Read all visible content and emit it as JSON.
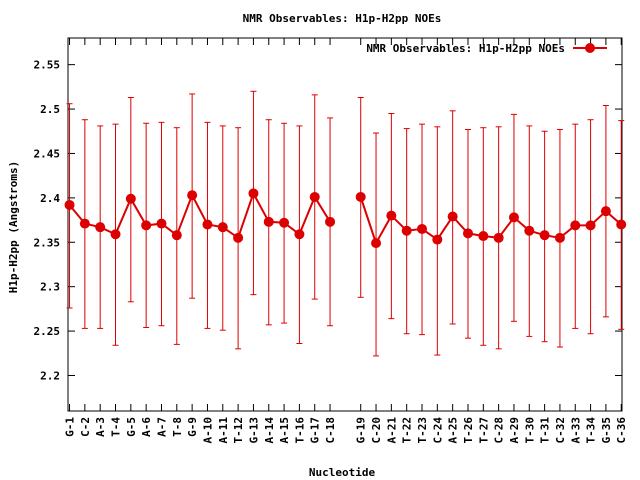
{
  "chart_data": {
    "type": "line",
    "title": "NMR Observables: H1p-H2pp NOEs",
    "xlabel": "Nucleotide",
    "ylabel": "H1p-H2pp (Angstroms)",
    "ylim": [
      2.16,
      2.58
    ],
    "yticks": [
      2.2,
      2.25,
      2.3,
      2.35,
      2.4,
      2.45,
      2.5,
      2.55
    ],
    "ytick_labels": [
      "2.2",
      "2.25",
      "2.3",
      "2.35",
      "2.4",
      "2.45",
      "2.5",
      "2.55"
    ],
    "grid": false,
    "legend_position": "top-right",
    "color": "#dd0000",
    "categories": [
      "G-1",
      "C-2",
      "A-3",
      "T-4",
      "G-5",
      "A-6",
      "A-7",
      "T-8",
      "G-9",
      "A-10",
      "A-11",
      "T-12",
      "G-13",
      "A-14",
      "A-15",
      "T-16",
      "G-17",
      "C-18",
      "G-19",
      "C-20",
      "A-21",
      "T-22",
      "T-23",
      "C-24",
      "A-25",
      "T-26",
      "T-27",
      "C-28",
      "A-29",
      "T-30",
      "T-31",
      "C-32",
      "A-33",
      "T-34",
      "G-35",
      "C-36"
    ],
    "x": [
      1,
      2,
      3,
      4,
      5,
      6,
      7,
      8,
      9,
      10,
      11,
      12,
      13,
      14,
      15,
      16,
      17,
      18,
      20,
      21,
      22,
      23,
      24,
      25,
      26,
      27,
      28,
      29,
      30,
      31,
      32,
      33,
      34,
      35,
      36,
      37
    ],
    "series": [
      {
        "name": "NMR Observables: H1p-H2pp NOEs",
        "values": [
          2.392,
          2.371,
          2.367,
          2.359,
          2.399,
          2.369,
          2.371,
          2.358,
          2.403,
          2.37,
          2.367,
          2.355,
          2.405,
          2.373,
          2.372,
          2.359,
          2.401,
          2.373,
          2.401,
          2.349,
          2.38,
          2.363,
          2.365,
          2.353,
          2.379,
          2.36,
          2.357,
          2.355,
          2.378,
          2.363,
          2.358,
          2.355,
          2.369,
          2.369,
          2.385,
          2.37
        ],
        "err_low": [
          2.276,
          2.253,
          2.253,
          2.234,
          2.283,
          2.254,
          2.256,
          2.235,
          2.287,
          2.253,
          2.251,
          2.23,
          2.291,
          2.257,
          2.259,
          2.236,
          2.286,
          2.256,
          2.288,
          2.222,
          2.264,
          2.247,
          2.246,
          2.223,
          2.258,
          2.242,
          2.234,
          2.23,
          2.261,
          2.244,
          2.238,
          2.232,
          2.253,
          2.247,
          2.266,
          2.252
        ],
        "err_high": [
          2.506,
          2.488,
          2.481,
          2.483,
          2.513,
          2.484,
          2.485,
          2.479,
          2.517,
          2.485,
          2.481,
          2.479,
          2.52,
          2.488,
          2.484,
          2.481,
          2.516,
          2.49,
          2.513,
          2.473,
          2.495,
          2.478,
          2.483,
          2.48,
          2.498,
          2.477,
          2.479,
          2.48,
          2.494,
          2.481,
          2.475,
          2.477,
          2.483,
          2.488,
          2.504,
          2.487
        ]
      }
    ]
  }
}
